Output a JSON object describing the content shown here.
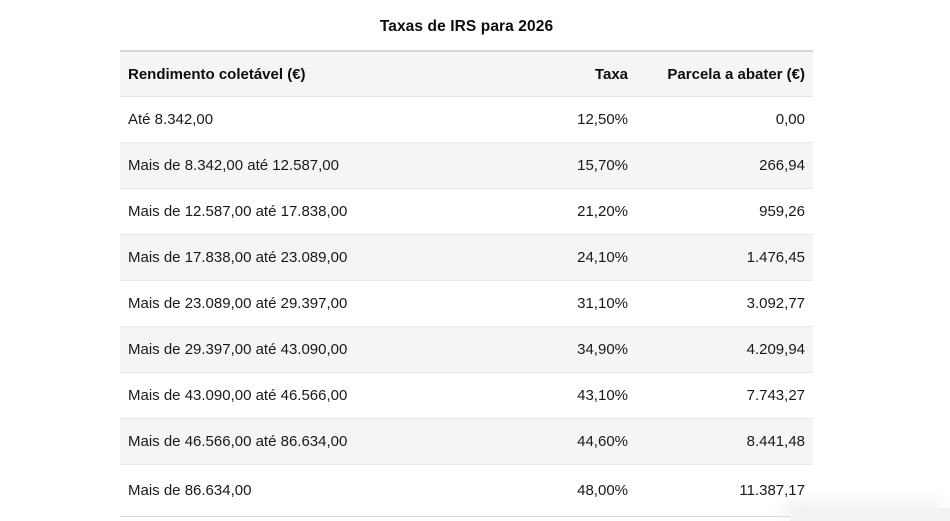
{
  "page": {
    "title": "Taxas de IRS para 2026"
  },
  "table": {
    "headers": [
      "Rendimento coletável (€)",
      "Taxa",
      "Parcela a abater (€)"
    ],
    "rows": [
      {
        "income": "Até 8.342,00",
        "rate": "12,50%",
        "deduction": "0,00"
      },
      {
        "income": "Mais de 8.342,00 até 12.587,00",
        "rate": "15,70%",
        "deduction": "266,94"
      },
      {
        "income": "Mais de 12.587,00 até 17.838,00",
        "rate": "21,20%",
        "deduction": "959,26"
      },
      {
        "income": "Mais de 17.838,00 até 23.089,00",
        "rate": "24,10%",
        "deduction": "1.476,45"
      },
      {
        "income": "Mais de 23.089,00 até 29.397,00",
        "rate": "31,10%",
        "deduction": "3.092,77"
      },
      {
        "income": "Mais de 29.397,00 até 43.090,00",
        "rate": "34,90%",
        "deduction": "4.209,94"
      },
      {
        "income": "Mais de 43.090,00 até 46.566,00",
        "rate": "43,10%",
        "deduction": "7.743,27"
      },
      {
        "income": "Mais de 46.566,00 até 86.634,00",
        "rate": "44,60%",
        "deduction": "8.441,48"
      },
      {
        "income": "Mais de 86.634,00",
        "rate": "48,00%",
        "deduction": "11.387,17"
      }
    ]
  },
  "colors": {
    "stripe_and_header_bg": "#f4f5f7",
    "table_top_border": "#d3d6da",
    "row_separator": "#e6e8eb",
    "table_bottom_border": "#d9dbde",
    "text": "#19191b",
    "heading_text": "#0d0d0e",
    "page_bg": "#ffffff"
  },
  "chart_data": {
    "type": "table",
    "title": "Taxas de IRS para 2026",
    "columns": [
      "Rendimento coletável (€)",
      "Taxa",
      "Parcela a abater (€)"
    ],
    "rows": [
      [
        "Até 8.342,00",
        "12,50%",
        "0,00"
      ],
      [
        "Mais de 8.342,00 até 12.587,00",
        "15,70%",
        "266,94"
      ],
      [
        "Mais de 12.587,00 até 17.838,00",
        "21,20%",
        "959,26"
      ],
      [
        "Mais de 17.838,00 até 23.089,00",
        "24,10%",
        "1.476,45"
      ],
      [
        "Mais de 23.089,00 até 29.397,00",
        "31,10%",
        "3.092,77"
      ],
      [
        "Mais de 29.397,00 até 43.090,00",
        "34,90%",
        "4.209,94"
      ],
      [
        "Mais de 43.090,00 até 46.566,00",
        "43,10%",
        "7.743,27"
      ],
      [
        "Mais de 46.566,00 até 86.634,00",
        "44,60%",
        "8.441,48"
      ],
      [
        "Mais de 86.634,00",
        "48,00%",
        "11.387,17"
      ]
    ],
    "bracket_upper_bounds_eur": [
      8342.0,
      12587.0,
      17838.0,
      23089.0,
      29397.0,
      43090.0,
      46566.0,
      86634.0,
      null
    ],
    "rates_percent": [
      12.5,
      15.7,
      21.2,
      24.1,
      31.1,
      34.9,
      43.1,
      44.6,
      48.0
    ],
    "deductions_eur": [
      0.0,
      266.94,
      959.26,
      1476.45,
      3092.77,
      4209.94,
      7743.27,
      8441.48,
      11387.17
    ],
    "layout": {
      "zebra_striping": true,
      "header_background": true,
      "first_column_align": "left",
      "numeric_columns_align": "right"
    }
  }
}
